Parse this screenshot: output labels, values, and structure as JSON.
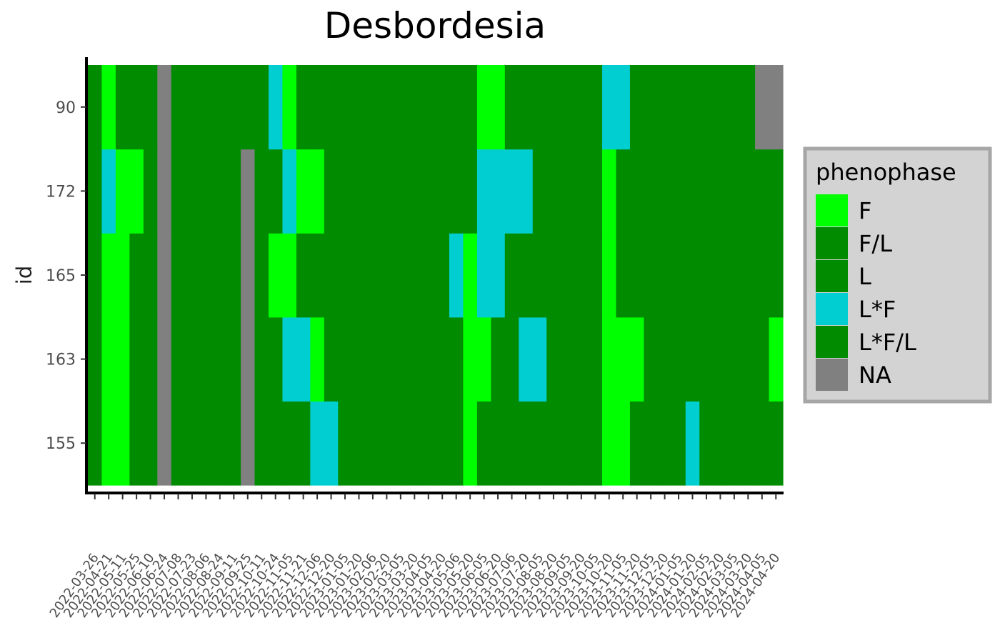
{
  "chart_data": {
    "type": "heatmap",
    "title": "Desbordesia",
    "xlabel": "",
    "ylabel": "id",
    "x_tick_labels": [
      "2022-03-26",
      "2022-04-21",
      "2022-05-11",
      "2022-05-25",
      "2022-06-10",
      "2022-06-24",
      "2022-07-08",
      "2022-07-23",
      "2022-08-06",
      "2022-08-24",
      "2022-09-11",
      "2022-09-25",
      "2022-10-11",
      "2022-10-24",
      "2022-11-05",
      "2022-11-21",
      "2022-12-06",
      "2022-12-20",
      "2023-01-05",
      "2023-01-20",
      "2023-02-06",
      "2023-02-20",
      "2023-03-05",
      "2023-03-20",
      "2023-04-05",
      "2023-04-20",
      "2023-05-06",
      "2023-05-20",
      "2023-06-05",
      "2023-06-20",
      "2023-07-06",
      "2023-07-20",
      "2023-08-05",
      "2023-08-20",
      "2023-09-05",
      "2023-09-20",
      "2023-10-05",
      "2023-10-20",
      "2023-11-05",
      "2023-11-20",
      "2023-12-05",
      "2023-12-20",
      "2024-01-05",
      "2024-01-20",
      "2024-02-05",
      "2024-02-20",
      "2024-03-05",
      "2024-03-20",
      "2024-04-05",
      "2024-04-20"
    ],
    "y_categories": [
      "155",
      "163",
      "165",
      "172",
      "90"
    ],
    "legend": {
      "title": "phenophase",
      "position": "right",
      "entries": [
        {
          "label": "F",
          "color": "#00FF00"
        },
        {
          "label": "F/L",
          "color": "#008B00"
        },
        {
          "label": "L",
          "color": "#008B00"
        },
        {
          "label": "L*F",
          "color": "#00CED1"
        },
        {
          "label": "L*F/L",
          "color": "#008B00"
        },
        {
          "label": "NA",
          "color": "#808080"
        }
      ]
    },
    "rows": [
      {
        "id": "155",
        "values": [
          "L",
          "F",
          "F",
          "L",
          "L",
          "NA",
          "L",
          "L",
          "L",
          "L",
          "L",
          "NA",
          "L",
          "L",
          "L",
          "L",
          "L*F",
          "L*F",
          "L",
          "L",
          "L",
          "L",
          "L",
          "L",
          "L",
          "L",
          "L",
          "F",
          "L",
          "L",
          "L",
          "L",
          "L",
          "L",
          "L",
          "L",
          "L",
          "F",
          "F",
          "L",
          "L",
          "L",
          "L",
          "L*F",
          "L",
          "L",
          "L",
          "L",
          "L",
          "L"
        ]
      },
      {
        "id": "163",
        "values": [
          "L",
          "F",
          "F",
          "L",
          "L",
          "NA",
          "L",
          "L",
          "L",
          "L",
          "L",
          "NA",
          "L",
          "L",
          "L*F",
          "L*F",
          "F",
          "L",
          "L",
          "L",
          "L",
          "L",
          "L",
          "L",
          "L",
          "L",
          "L",
          "F",
          "F",
          "L",
          "L",
          "L*F",
          "L*F",
          "L",
          "L",
          "L",
          "L",
          "F",
          "F",
          "F",
          "L",
          "L",
          "L",
          "L",
          "L",
          "L",
          "L",
          "L",
          "L",
          "F"
        ]
      },
      {
        "id": "165",
        "values": [
          "L",
          "F",
          "F",
          "L",
          "L",
          "NA",
          "L",
          "L",
          "L",
          "L",
          "L",
          "NA",
          "L",
          "F",
          "F",
          "L",
          "L",
          "L",
          "L",
          "L",
          "L",
          "L",
          "L",
          "L",
          "L",
          "L",
          "L*F",
          "F",
          "L*F",
          "L*F",
          "L",
          "L",
          "L",
          "L",
          "L",
          "L",
          "L",
          "F",
          "L",
          "L",
          "L",
          "L",
          "L",
          "L",
          "L",
          "L",
          "L",
          "L",
          "L",
          "L"
        ]
      },
      {
        "id": "172",
        "values": [
          "L",
          "L*F",
          "F",
          "F",
          "L",
          "NA",
          "L",
          "L",
          "L",
          "L",
          "L",
          "NA",
          "L",
          "L",
          "L*F",
          "F",
          "F",
          "L",
          "L",
          "L",
          "L",
          "L",
          "L",
          "L",
          "L",
          "L",
          "L",
          "L",
          "L*F",
          "L*F",
          "L*F",
          "L*F",
          "L",
          "L",
          "L",
          "L",
          "L",
          "F",
          "L",
          "L",
          "L",
          "L",
          "L",
          "L",
          "L",
          "L",
          "L",
          "L",
          "L",
          "L"
        ]
      },
      {
        "id": "90",
        "values": [
          "L",
          "F",
          "L",
          "L",
          "L",
          "NA",
          "L",
          "L",
          "L",
          "L",
          "L",
          "L",
          "L",
          "L*F",
          "F",
          "L",
          "L",
          "L",
          "L",
          "L",
          "L",
          "L",
          "L",
          "L",
          "L",
          "L",
          "L",
          "L",
          "F",
          "F",
          "L",
          "L",
          "L",
          "L",
          "L",
          "L",
          "L",
          "L*F",
          "L*F",
          "L",
          "L",
          "L",
          "L",
          "L",
          "L",
          "L",
          "L",
          "L",
          "NA",
          "NA"
        ]
      }
    ]
  }
}
